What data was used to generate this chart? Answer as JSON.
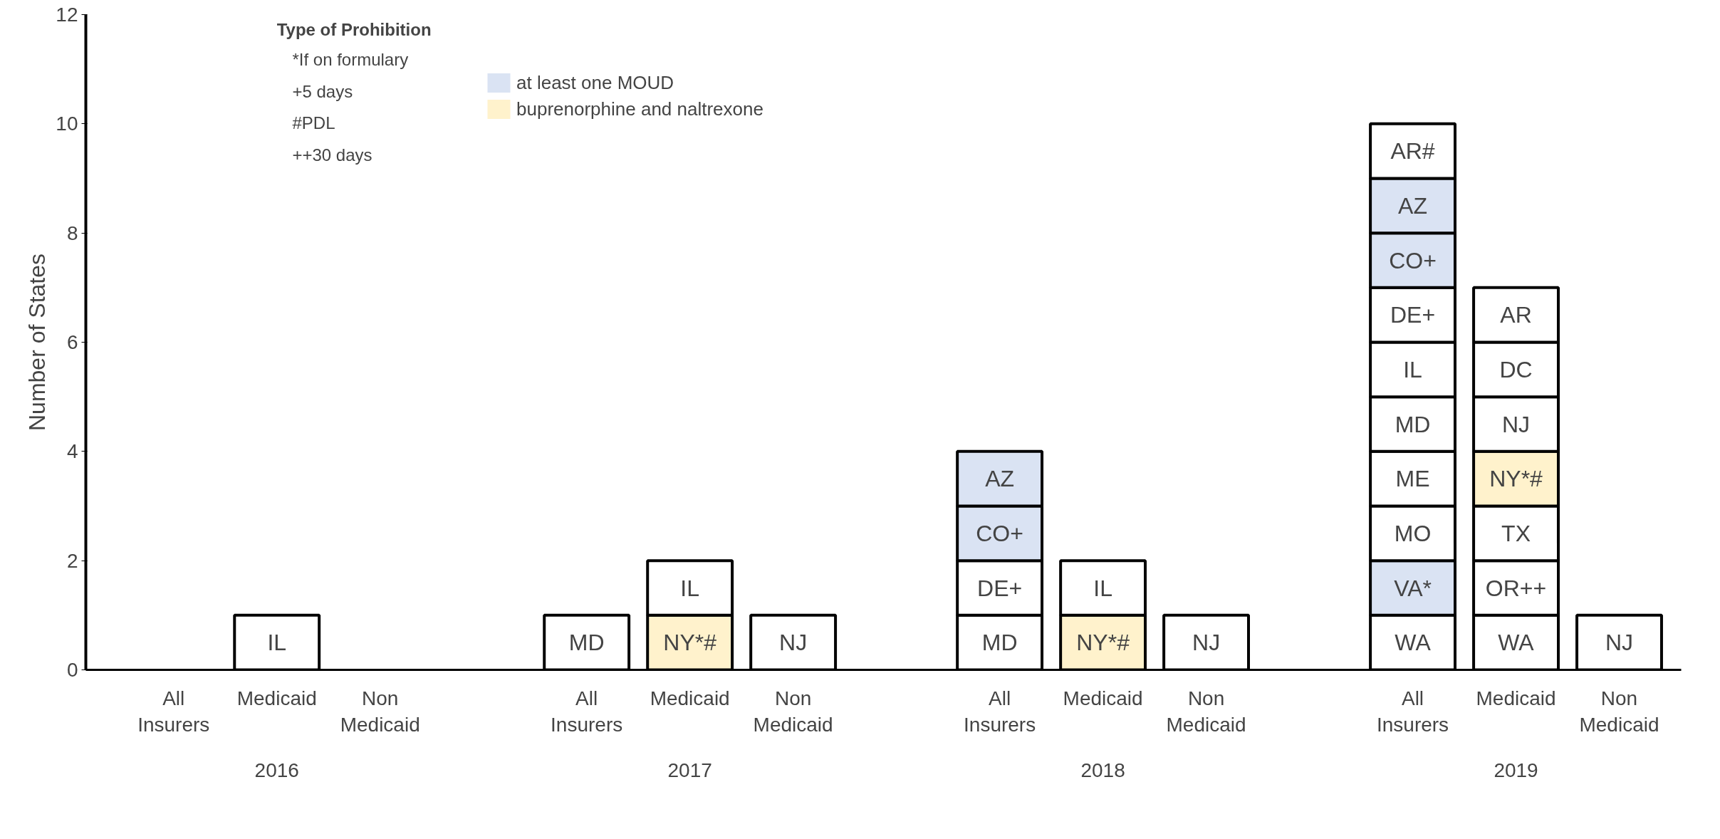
{
  "chart_data": {
    "type": "bar",
    "stacked": true,
    "ylabel": "Number of States",
    "legend_title": "Type of Prohibition",
    "legend": "top left",
    "categories": [
      "All Insurers",
      "Medicaid",
      "Non Medicaid",
      "All Insurers",
      "Medicaid",
      "Non Medicaid",
      "All Insurers",
      "Medicaid",
      "Non Medicaid",
      "All Insurers",
      "Medicaid",
      "Non Medicaid"
    ],
    "ylim": [
      0,
      12
    ],
    "yticks": [
      0,
      2,
      4,
      6,
      8,
      10,
      12
    ],
    "grid": false,
    "annotations": [
      "*If on formulary",
      "+5 days",
      "#PDL",
      "++30 days",
      "2016",
      "2017",
      "2018",
      "2019"
    ],
    "series": [
      {
        "values": [
          null,
          1,
          null,
          1,
          1,
          1,
          1,
          1,
          1,
          1,
          1,
          1
        ],
        "colors": [
          "#ffffff",
          "#ffffff",
          "#ffffff",
          "#ffffff",
          "#fff2cc",
          "#ffffff",
          "#ffffff",
          "#fff2cc",
          "#ffffff",
          "#ffffff",
          "#ffffff",
          "#ffffff"
        ],
        "value_labels": [
          null,
          "IL",
          null,
          "MD",
          "NY*#",
          "NJ",
          "MD",
          "NY*#",
          "NJ",
          "WA",
          "WA",
          "NJ"
        ]
      },
      {
        "values": [
          null,
          null,
          null,
          null,
          1,
          null,
          1,
          1,
          null,
          1,
          1,
          null
        ],
        "colors": [
          "#ffffff",
          "#ffffff",
          "#ffffff",
          "#ffffff",
          "#ffffff",
          "#ffffff",
          "#ffffff",
          "#ffffff",
          "#ffffff",
          "#dae3f3",
          "#ffffff",
          "#ffffff"
        ],
        "value_labels": [
          null,
          null,
          null,
          null,
          "IL",
          null,
          "DE+",
          "IL",
          null,
          "VA*",
          "OR++",
          null
        ]
      },
      {
        "values": [
          null,
          null,
          null,
          null,
          null,
          null,
          1,
          null,
          null,
          1,
          1,
          null
        ],
        "colors": [
          "#ffffff",
          "#ffffff",
          "#ffffff",
          "#ffffff",
          "#ffffff",
          "#ffffff",
          "#dae3f3",
          "#ffffff",
          "#ffffff",
          "#ffffff",
          "#ffffff",
          "#ffffff"
        ],
        "value_labels": [
          null,
          null,
          null,
          null,
          null,
          null,
          "CO+",
          null,
          null,
          "MO",
          "TX",
          null
        ]
      },
      {
        "values": [
          null,
          null,
          null,
          null,
          null,
          null,
          1,
          null,
          null,
          1,
          1,
          null
        ],
        "colors": [
          "#ffffff",
          "#ffffff",
          "#ffffff",
          "#ffffff",
          "#ffffff",
          "#ffffff",
          "#dae3f3",
          "#ffffff",
          "#ffffff",
          "#ffffff",
          "#fff2cc",
          "#ffffff"
        ],
        "value_labels": [
          null,
          null,
          null,
          null,
          null,
          null,
          "AZ",
          null,
          null,
          "ME",
          "NY*#",
          null
        ]
      },
      {
        "values": [
          null,
          null,
          null,
          null,
          null,
          null,
          null,
          null,
          null,
          1,
          1,
          null
        ],
        "colors": [
          "#ffffff",
          "#ffffff",
          "#ffffff",
          "#ffffff",
          "#ffffff",
          "#ffffff",
          "#ffffff",
          "#ffffff",
          "#ffffff",
          "#ffffff",
          "#ffffff",
          "#ffffff"
        ],
        "value_labels": [
          null,
          null,
          null,
          null,
          null,
          null,
          null,
          null,
          null,
          "MD",
          "NJ",
          null
        ]
      },
      {
        "values": [
          null,
          null,
          null,
          null,
          null,
          null,
          null,
          null,
          null,
          1,
          1,
          null
        ],
        "colors": [
          "#ffffff",
          "#ffffff",
          "#ffffff",
          "#ffffff",
          "#ffffff",
          "#ffffff",
          "#ffffff",
          "#ffffff",
          "#ffffff",
          "#ffffff",
          "#ffffff",
          "#ffffff"
        ],
        "value_labels": [
          null,
          null,
          null,
          null,
          null,
          null,
          null,
          null,
          null,
          "IL",
          "DC",
          null
        ]
      },
      {
        "values": [
          null,
          null,
          null,
          null,
          null,
          null,
          null,
          null,
          null,
          1,
          1,
          null
        ],
        "colors": [
          "#ffffff",
          "#ffffff",
          "#ffffff",
          "#ffffff",
          "#ffffff",
          "#ffffff",
          "#ffffff",
          "#ffffff",
          "#ffffff",
          "#ffffff",
          "#ffffff",
          "#ffffff"
        ],
        "value_labels": [
          null,
          null,
          null,
          null,
          null,
          null,
          null,
          null,
          null,
          "DE+",
          "AR",
          null
        ]
      },
      {
        "values": [
          null,
          null,
          null,
          null,
          null,
          null,
          null,
          null,
          null,
          1,
          null,
          null
        ],
        "colors": [
          "#ffffff",
          "#ffffff",
          "#ffffff",
          "#ffffff",
          "#ffffff",
          "#ffffff",
          "#ffffff",
          "#ffffff",
          "#ffffff",
          "#dae3f3",
          "#ffffff",
          "#ffffff"
        ],
        "value_labels": [
          null,
          null,
          null,
          null,
          null,
          null,
          null,
          null,
          null,
          "CO+",
          null,
          null
        ]
      },
      {
        "values": [
          null,
          null,
          null,
          null,
          null,
          null,
          null,
          null,
          null,
          1,
          null,
          null
        ],
        "colors": [
          "#ffffff",
          "#ffffff",
          "#ffffff",
          "#ffffff",
          "#ffffff",
          "#ffffff",
          "#ffffff",
          "#ffffff",
          "#ffffff",
          "#dae3f3",
          "#ffffff",
          "#ffffff"
        ],
        "value_labels": [
          null,
          null,
          null,
          null,
          null,
          null,
          null,
          null,
          null,
          "AZ",
          null,
          null
        ]
      },
      {
        "values": [
          null,
          null,
          null,
          null,
          null,
          null,
          null,
          null,
          null,
          1,
          null,
          null
        ],
        "colors": [
          "#ffffff",
          "#ffffff",
          "#ffffff",
          "#ffffff",
          "#ffffff",
          "#ffffff",
          "#ffffff",
          "#ffffff",
          "#ffffff",
          "#ffffff",
          "#ffffff",
          "#ffffff"
        ],
        "value_labels": [
          null,
          null,
          null,
          null,
          null,
          null,
          null,
          null,
          null,
          "AR#",
          null,
          null
        ]
      },
      {
        "name": "at least one MOUD",
        "color": "#dae3f3",
        "values": [
          null,
          null,
          null,
          null,
          null,
          null,
          null,
          null,
          null,
          null,
          null,
          null
        ]
      },
      {
        "name": "buprenorphine and naltrexone",
        "color": "#fff2cc",
        "values": [
          null,
          null,
          null,
          null,
          null,
          null,
          null,
          null,
          null,
          null,
          null,
          null
        ]
      }
    ]
  }
}
